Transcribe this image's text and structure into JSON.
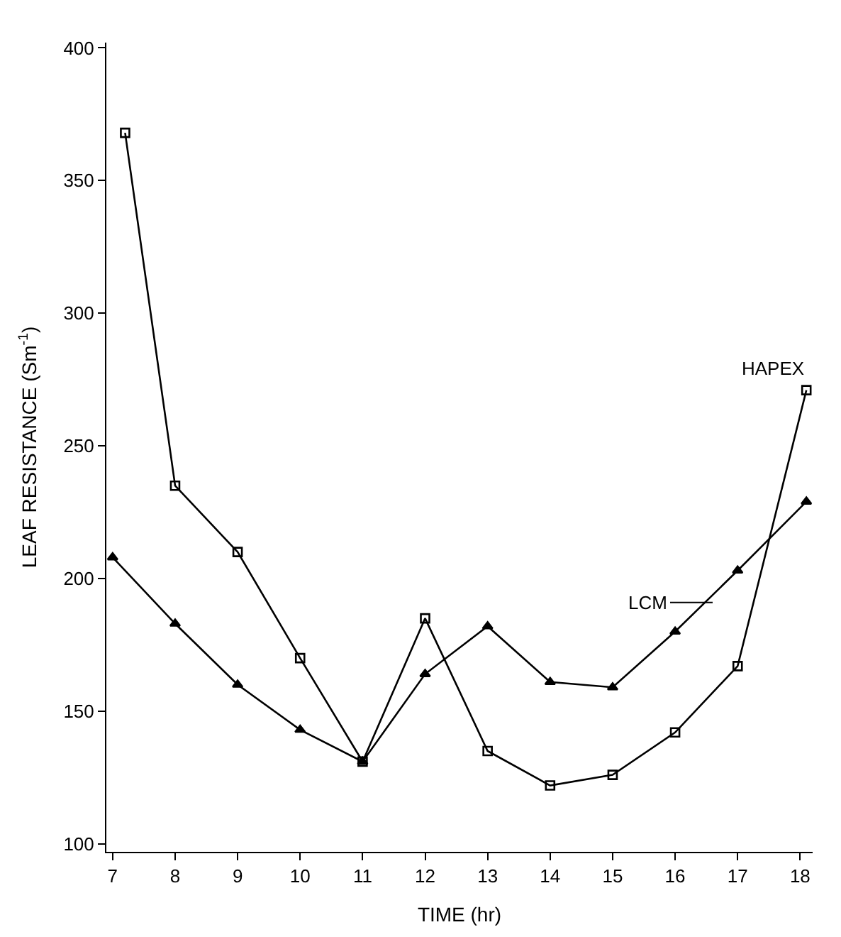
{
  "chart_data": {
    "type": "line",
    "xlabel": "TIME (hr)",
    "ylabel": "LEAF RESISTANCE (Sm$^{-1}$)",
    "series": [
      {
        "color": "#000000",
        "marker": "square",
        "x": [
          7.2,
          8,
          9,
          10,
          11,
          12,
          13,
          14,
          15,
          16,
          17,
          18.1
        ],
        "values": [
          368,
          235,
          210,
          170,
          131,
          185,
          135,
          122,
          126,
          142,
          167,
          271
        ]
      },
      {
        "color": "#000000",
        "marker": "triangle",
        "x": [
          7,
          8,
          9,
          10,
          11,
          12,
          13,
          14,
          15,
          16,
          17,
          18.1
        ],
        "values": [
          208,
          183,
          160,
          143,
          131,
          164,
          182,
          161,
          159,
          180,
          203,
          229
        ]
      }
    ],
    "annotations": [
      {
        "text": "HAPEX",
        "x": 18.1,
        "y": 271
      },
      {
        "text": "LCM",
        "x": 16.6,
        "y": 191
      }
    ],
    "xlim": [
      6.9,
      18.2
    ],
    "xticks": [
      7,
      8,
      9,
      10,
      11,
      12,
      13,
      14,
      15,
      16,
      17,
      18
    ],
    "ylim": [
      97,
      402
    ],
    "yticks": [
      100,
      150,
      200,
      250,
      300,
      350,
      400
    ],
    "line_style": "solid"
  }
}
